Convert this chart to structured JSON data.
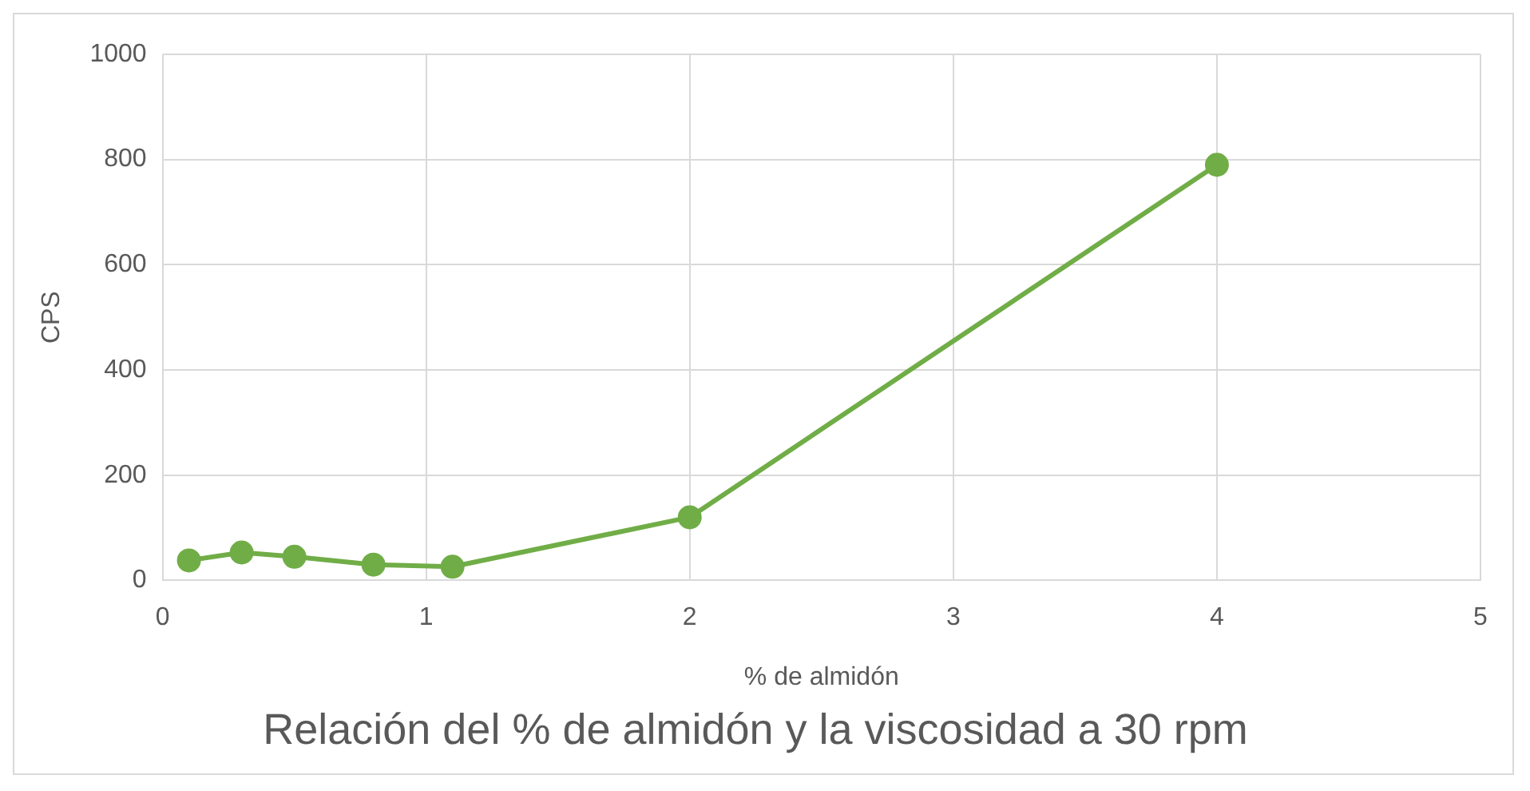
{
  "chart_data": {
    "type": "line",
    "title": "Relación del % de almidón y la viscosidad a 30 rpm",
    "xlabel": "% de almidón",
    "ylabel": "CPS",
    "x": [
      0.1,
      0.3,
      0.5,
      0.8,
      1.1,
      2,
      4
    ],
    "series": [
      {
        "color": "#70ad47",
        "values": [
          38,
          53,
          45,
          30,
          26,
          120,
          790
        ]
      }
    ],
    "xlim": [
      0,
      5
    ],
    "xticks": [
      0,
      1,
      2,
      3,
      4,
      5
    ],
    "ylim": [
      0,
      1000
    ],
    "yticks": [
      0,
      200,
      400,
      600,
      800,
      1000
    ],
    "grid": true,
    "marker": "circle",
    "line_style": "solid",
    "legend": false
  }
}
